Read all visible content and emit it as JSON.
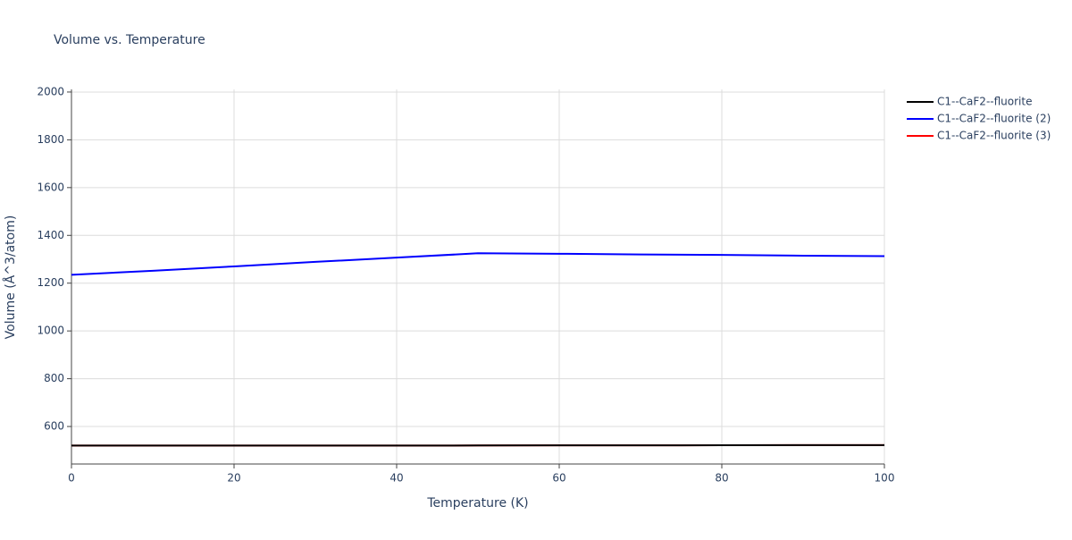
{
  "chart_data": {
    "type": "line",
    "title": "Volume vs. Temperature",
    "x_label": "Temperature (K)",
    "y_label": "Volume (Å^3/atom)",
    "x": [
      0,
      10,
      20,
      30,
      40,
      50,
      60,
      70,
      80,
      90,
      100
    ],
    "series": [
      {
        "name": "C1--CaF2--fluorite",
        "color": "#000000",
        "values": [
          520,
          520,
          520,
          520,
          520,
          520.5,
          521,
          521,
          521.5,
          522,
          522
        ]
      },
      {
        "name": "C1--CaF2--fluorite (2)",
        "color": "#0000ff",
        "values": [
          1235,
          1252,
          1270,
          1289,
          1307,
          1325,
          1323,
          1320,
          1318,
          1315,
          1313
        ]
      },
      {
        "name": "C1--CaF2--fluorite (3)",
        "color": "#ff0000",
        "values": [
          520,
          520,
          520,
          520,
          520,
          520.5,
          521,
          521,
          521.5,
          522,
          522
        ]
      }
    ],
    "xlim": [
      0,
      100
    ],
    "xticks": [
      0,
      20,
      40,
      60,
      80,
      100
    ],
    "ylim": [
      443,
      2011
    ],
    "yticks": [
      600,
      800,
      1000,
      1200,
      1400,
      1600,
      1800,
      2000
    ],
    "grid": true,
    "legend": "right"
  }
}
